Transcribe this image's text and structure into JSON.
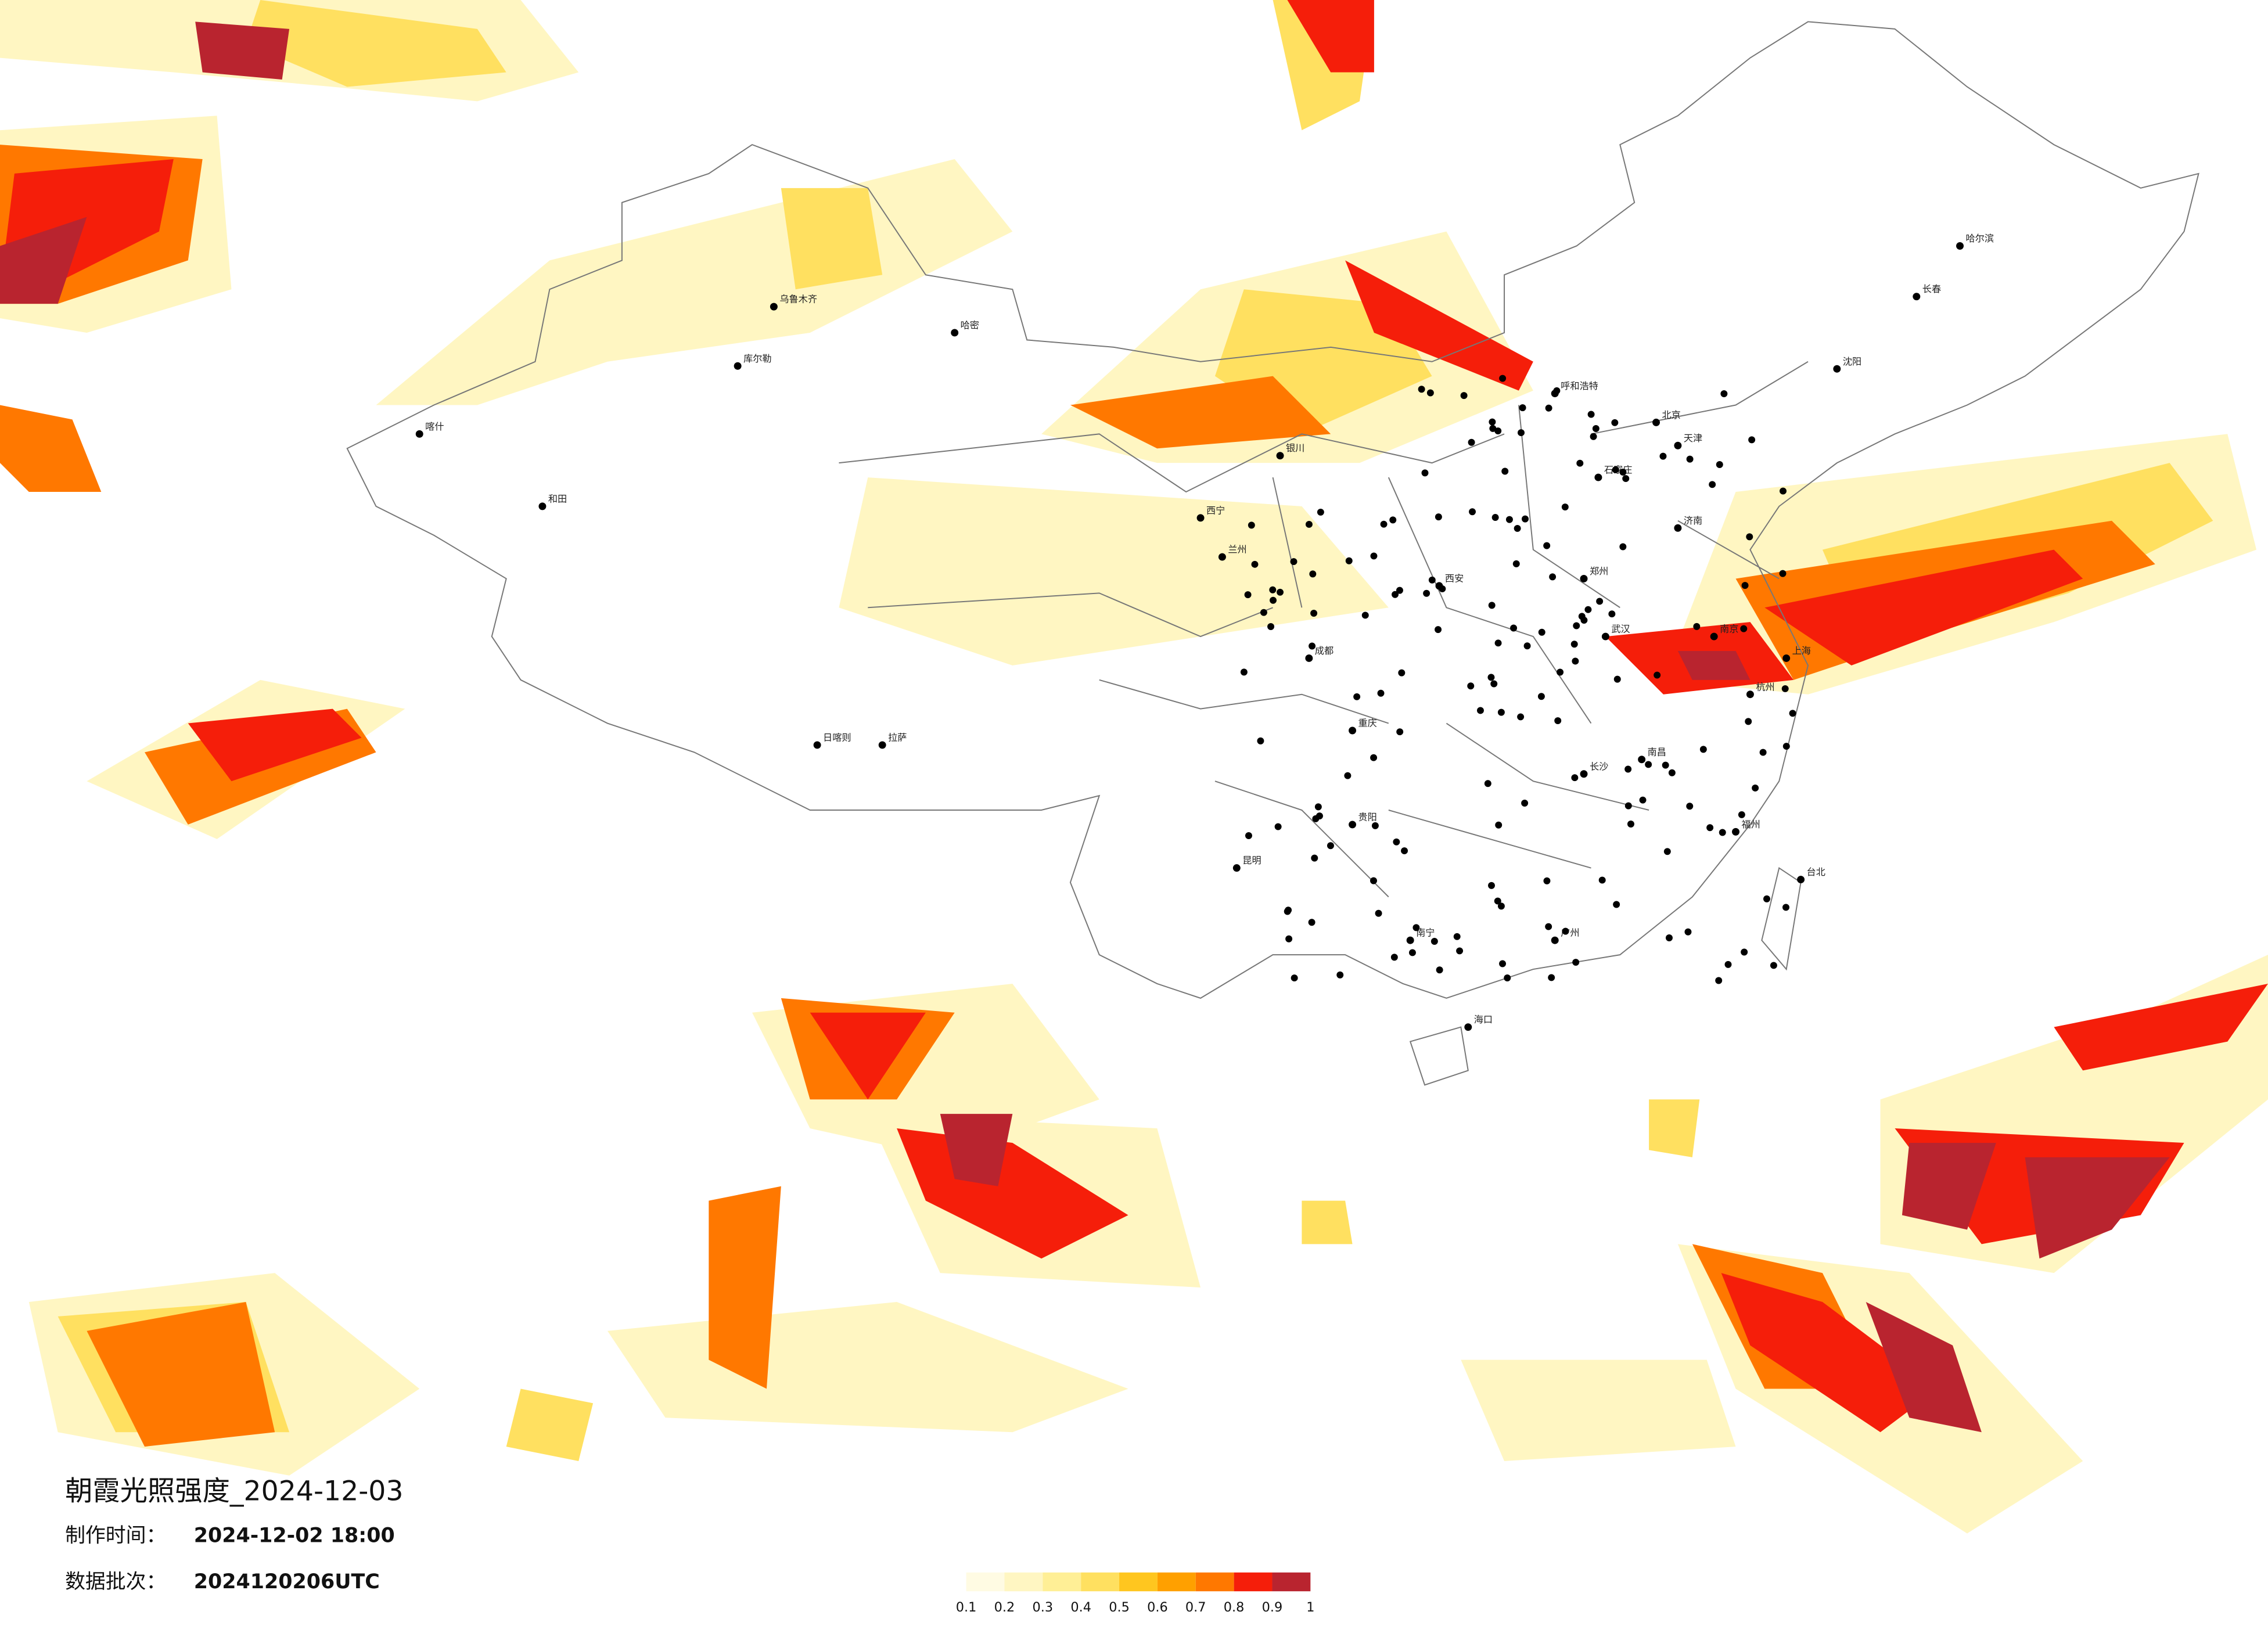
{
  "title": "朝霞光照强度_2024-12-03",
  "production_label": "制作时间：",
  "production_time": "2024-12-02 18:00",
  "batch_label": "数据批次：",
  "batch": "2024120206UTC",
  "legend": {
    "colors": [
      "#fffbe3",
      "#fff6c2",
      "#ffef96",
      "#ffe060",
      "#ffc61f",
      "#ffa000",
      "#ff7800",
      "#f51e0a",
      "#b9242f"
    ],
    "ticks": [
      0.1,
      0.2,
      0.3,
      0.4,
      0.5,
      0.6,
      0.7,
      0.8,
      0.9,
      1
    ]
  },
  "cities": [
    "乌鲁木齐",
    "哈密",
    "库尔勒",
    "喀什",
    "和田",
    "拉萨",
    "日喀则",
    "西宁",
    "兰州",
    "银川",
    "呼和浩特",
    "北京",
    "天津",
    "石家庄",
    "济南",
    "郑州",
    "西安",
    "成都",
    "重庆",
    "武汉",
    "长沙",
    "南昌",
    "杭州",
    "上海",
    "南京",
    "福州",
    "广州",
    "南宁",
    "昆明",
    "贵阳",
    "海口",
    "哈尔滨",
    "长春",
    "沈阳",
    "台北"
  ]
}
